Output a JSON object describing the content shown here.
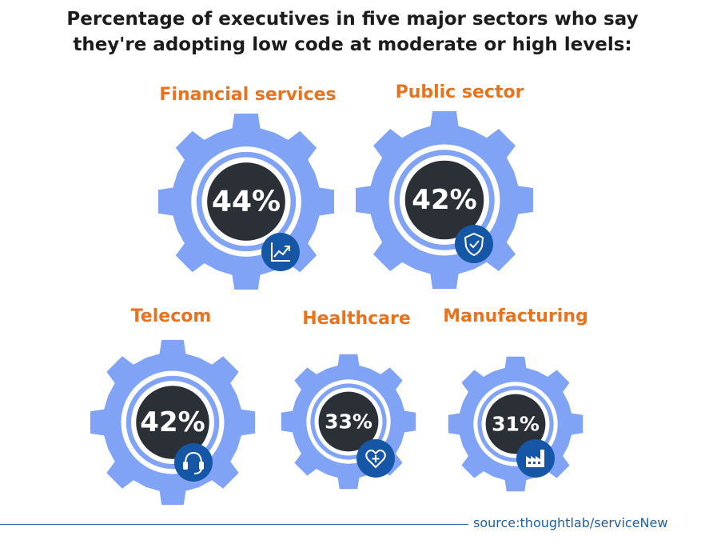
{
  "title": {
    "line1": "Percentage of executives in five major sectors who say",
    "line2": "they're adopting low code at moderate or high levels:"
  },
  "colors": {
    "gear": "#80a3f5",
    "ring": "#ffffff",
    "core": "#2b2f36",
    "badge": "#1656a6",
    "label": "#e8731f"
  },
  "chart_data": {
    "type": "bar",
    "title": "Percentage of executives in five major sectors who say they're adopting low code at moderate or high levels:",
    "categories": [
      "Financial services",
      "Public sector",
      "Telecom",
      "Healthcare",
      "Manufacturing"
    ],
    "values": [
      44,
      42,
      42,
      33,
      31
    ],
    "value_labels": [
      "44%",
      "42%",
      "42%",
      "33%",
      "31%"
    ],
    "icons": [
      "chart-trend-icon",
      "shield-check-icon",
      "headset-icon",
      "heart-plus-icon",
      "factory-icon"
    ]
  },
  "source": "source:thoughtlab/serviceNew"
}
